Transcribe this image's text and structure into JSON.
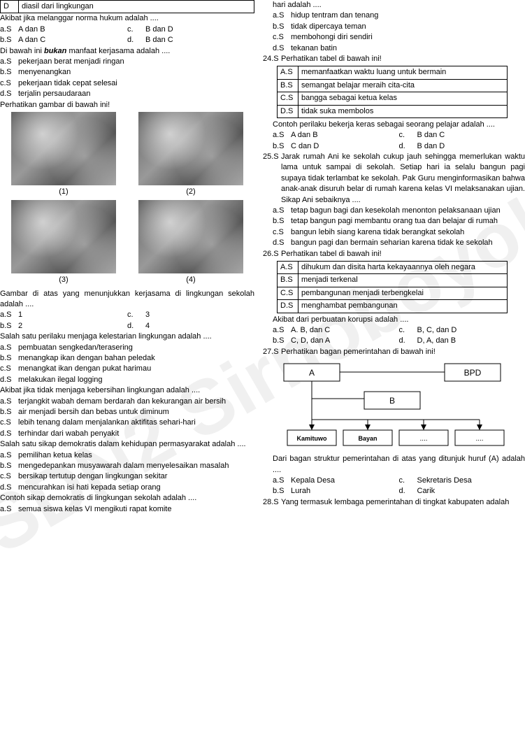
{
  "watermark": "SDN2 Sirnoboyo!",
  "left": {
    "row_d_top_label": "D",
    "row_d_top_text": "diasil dari lingkungan",
    "q1": "Akibat jika melanggar norma hukum adalah ....",
    "q1a_l": "a.S",
    "q1a": "A dan B",
    "q1c_l": "c.",
    "q1c": "B dan D",
    "q1b_l": "b.S",
    "q1b": "A dan C",
    "q1d_l": "d.",
    "q1d": "B dan C",
    "q2": "Di bawah ini <b><i>bukan</i></b> manfaat kerjasama adalah ....",
    "q2a_l": "a.S",
    "q2a": "pekerjaan berat menjadi ringan",
    "q2b_l": "b.S",
    "q2b": "menyenangkan",
    "q2c_l": "c.S",
    "q2c": "pekerjaan tidak cepat selesai",
    "q2d_l": "d.S",
    "q2d": "terjalin persaudaraan",
    "q3": "Perhatikan gambar di bawah ini!",
    "cap1": "(1)",
    "cap2": "(2)",
    "cap3": "(3)",
    "cap4": "(4)",
    "q3b": "Gambar di atas yang menunjukkan kerjasama di lingkungan sekolah adalah ....",
    "q3o_a_l": "a.S",
    "q3o_a": "1",
    "q3o_c_l": "c.",
    "q3o_c": "3",
    "q3o_b_l": "b.S",
    "q3o_b": "2",
    "q3o_d_l": "d.",
    "q3o_d": "4",
    "q4": "Salah satu perilaku menjaga kelestarian lingkungan adalah ....",
    "q4a_l": "a.S",
    "q4a": "pembuatan sengkedan/terasering",
    "q4b_l": "b.S",
    "q4b": "menangkap ikan dengan bahan peledak",
    "q4c_l": "c.S",
    "q4c": "menangkat ikan dengan pukat harimau",
    "q4d_l": "d.S",
    "q4d": "melakukan ilegal logging",
    "q5": "Akibat jika tidak menjaga kebersihan lingkungan adalah ....",
    "q5a_l": "a.S",
    "q5a": "terjangkit wabah demam berdarah dan kekurangan air bersih",
    "q5b_l": "b.S",
    "q5b": "air menjadi bersih dan bebas untuk diminum",
    "q5c_l": "c.S",
    "q5c": "lebih tenang dalam menjalankan aktifitas sehari-hari",
    "q5d_l": "d.S",
    "q5d": "terhindar dari wabah penyakit",
    "q6": "Salah satu sikap demokratis dalam kehidupan permasyarakat adalah ....",
    "q6a_l": "a.S",
    "q6a": "pemilihan ketua kelas",
    "q6b_l": "b.S",
    "q6b": "mengedepankan musyawarah dalam menyelesaikan masalah",
    "q6c_l": "c.S",
    "q6c": "bersikap tertutup dengan lingkungan sekitar",
    "q6d_l": "d.S",
    "q6d": "mencurahkan isi hati kepada setiap orang",
    "q7": "Contoh sikap demokratis di lingkungan sekolah adalah ....",
    "q7a_l": "a.S",
    "q7a": "semua siswa kelas VI mengikuti rapat komite"
  },
  "right": {
    "top_cut": "hari adalah ....",
    "ta_l": "a.S",
    "ta": "hidup tentram dan tenang",
    "tb_l": "b.S",
    "tb": "tidak dipercaya teman",
    "tc_l": "c.S",
    "tc": "membohongi diri sendiri",
    "td_l": "d.S",
    "td": "tekanan batin",
    "q24n": "24.S",
    "q24": "Perhatikan tabel di bawah ini!",
    "t24": {
      "A_l": "A.S",
      "A": "memanfaatkan waktu luang untuk bermain",
      "B_l": "B.S",
      "B": "semangat belajar meraih cita-cita",
      "C_l": "C.S",
      "C": "bangga sebagai ketua kelas",
      "D_l": "D.S",
      "D": "tidak suka membolos"
    },
    "q24b": "Contoh perilaku bekerja keras sebagai seorang pelajar adalah ....",
    "q24o_a_l": "a.S",
    "q24o_a": "A dan B",
    "q24o_c_l": "c.",
    "q24o_c": "B dan C",
    "q24o_b_l": "b.S",
    "q24o_b": "C dan D",
    "q24o_d_l": "d.",
    "q24o_d": "B dan D",
    "q25n": "25.S",
    "q25": "Jarak rumah Ani ke sekolah cukup jauh sehingga memerlukan waktu lama untuk sampai di sekolah. Setiap hari ia selalu bangun pagi supaya tidak terlambat ke sekolah. Pak Guru menginformasikan bahwa anak-anak disuruh belar di rumah karena kelas VI melaksanakan ujian. Sikap Ani sebaiknya ....",
    "q25a_l": "a.S",
    "q25a": "tetap bagun bagi dan kesekolah menonton pelaksanaan ujian",
    "q25b_l": "b.S",
    "q25b": "tetap bangun pagi membantu orang tua dan belajar di rumah",
    "q25c_l": "c.S",
    "q25c": "bangun lebih siang karena tidak berangkat sekolah",
    "q25d_l": "d.S",
    "q25d": "bangun pagi dan bermain seharian karena tidak ke sekolah",
    "q26n": "26.S",
    "q26": "Perhatikan tabel di bawah ini!",
    "t26": {
      "A_l": "A.S",
      "A": "dihukum dan disita harta kekayaannya oleh negara",
      "B_l": "B.S",
      "B": "menjadi terkenal",
      "C_l": "C.S",
      "C": "pembangunan menjadi terbengkelai",
      "D_l": "D.S",
      "D": "menghambat pembangunan"
    },
    "q26b": "Akibat dari perbuatan korupsi adalah ....",
    "q26o_a_l": "a.S",
    "q26o_a": "A. B, dan C",
    "q26o_c_l": "c.",
    "q26o_c": "B, C, dan D",
    "q26o_b_l": "b.S",
    "q26o_b": "C, D, dan A",
    "q26o_d_l": "d.",
    "q26o_d": "D, A, dan B",
    "q27n": "27.S",
    "q27": "Perhatikan bagan pemerintahan di bawah ini!",
    "bagan": {
      "A": "A",
      "BPD": "BPD",
      "B": "B",
      "Kamituwo": "Kamituwo",
      "Bayan": "Bayan",
      "d1": "....",
      "d2": "...."
    },
    "q27b": "Dari bagan struktur pemerintahan di atas yang ditunjuk huruf (A) adalah ....",
    "q27o_a_l": "a.S",
    "q27o_a": "Kepala Desa",
    "q27o_c_l": "c.",
    "q27o_c": "Sekretaris Desa",
    "q27o_b_l": "b.S",
    "q27o_b": "Lurah",
    "q27o_d_l": "d.",
    "q27o_d": "Carik",
    "q28n": "28.S",
    "q28": "Yang termasuk lembaga pemerintahan di tingkat kabupaten adalah"
  }
}
